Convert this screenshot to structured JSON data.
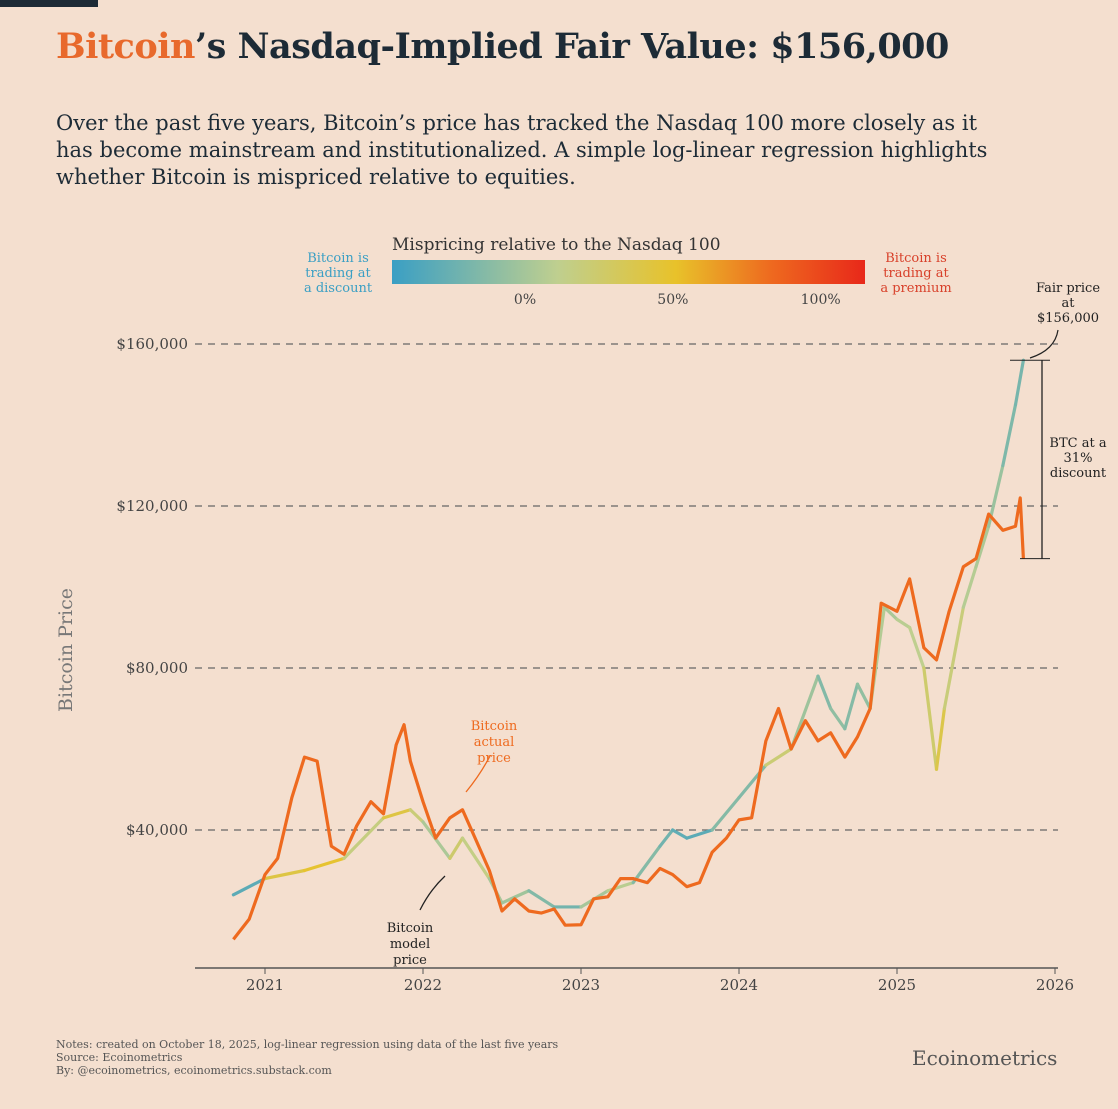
{
  "title_accent": "Bitcoin",
  "title_rest": "’s Nasdaq-Implied Fair Value: $156,000",
  "subtitle": "Over the past five years, Bitcoin’s price has tracked the Nasdaq 100 more closely as it has become mainstream and institutionalized. A simple log-linear regression highlights whether Bitcoin is mispriced relative to equities.",
  "colors": {
    "accent": "#e8692c",
    "actual": "#ee6a1f",
    "discount": "#3a9fc4",
    "neutral": "#bfcf8f",
    "mid": "#e8c22a",
    "premium": "#e8281a",
    "text": "#1d2b36",
    "background": "#f4dfcf"
  },
  "notes": [
    "Notes: created on October 18, 2025, log-linear regression using data of the last five years",
    "Source: Ecoinometrics",
    "By: @ecoinometrics, ecoinometrics.substack.com"
  ],
  "brand": "Ecoinometrics",
  "chart_data": {
    "type": "line",
    "ylabel": "Bitcoin Price",
    "xlabel": "",
    "xlim": [
      2020.6,
      2026.05
    ],
    "ylim": [
      6000,
      165000
    ],
    "x_ticks": [
      "2021",
      "2022",
      "2023",
      "2024",
      "2025",
      "2026"
    ],
    "y_ticks": [
      {
        "value": 40000,
        "label": "$40,000"
      },
      {
        "value": 80000,
        "label": "$80,000"
      },
      {
        "value": 120000,
        "label": "$120,000"
      },
      {
        "value": 160000,
        "label": "$160,000"
      }
    ],
    "grid": "horizontal dashed",
    "colorbar": {
      "title": "Mispricing relative to the Nasdaq 100",
      "left_label": "Bitcoin is trading at a discount",
      "right_label": "Bitcoin is trading at a premium",
      "ticks": [
        "0%",
        "50%",
        "100%"
      ],
      "range_percent": [
        -45,
        115
      ]
    },
    "annotations": {
      "actual": "Bitcoin actual price",
      "model": "Bitcoin model price",
      "fair": "Fair price at $156,000",
      "discount": "BTC at a 31% discount"
    },
    "series": [
      {
        "name": "Bitcoin actual price",
        "x": [
          2020.8,
          2020.9,
          2021.0,
          2021.08,
          2021.17,
          2021.25,
          2021.33,
          2021.42,
          2021.5,
          2021.58,
          2021.67,
          2021.75,
          2021.83,
          2021.88,
          2021.92,
          2022.0,
          2022.08,
          2022.17,
          2022.25,
          2022.33,
          2022.42,
          2022.5,
          2022.58,
          2022.67,
          2022.75,
          2022.83,
          2022.9,
          2023.0,
          2023.08,
          2023.17,
          2023.25,
          2023.33,
          2023.42,
          2023.5,
          2023.58,
          2023.67,
          2023.75,
          2023.83,
          2023.92,
          2024.0,
          2024.08,
          2024.17,
          2024.25,
          2024.33,
          2024.42,
          2024.5,
          2024.58,
          2024.67,
          2024.75,
          2024.83,
          2024.9,
          2025.0,
          2025.08,
          2025.17,
          2025.25,
          2025.33,
          2025.42,
          2025.5,
          2025.58,
          2025.67,
          2025.75,
          2025.78,
          2025.8
        ],
        "values": [
          13000,
          18000,
          29000,
          33000,
          48000,
          58000,
          57000,
          36000,
          34000,
          41000,
          47000,
          44000,
          61000,
          66000,
          57000,
          47000,
          38000,
          43000,
          45000,
          38000,
          30000,
          20000,
          23000,
          20000,
          19500,
          20500,
          16500,
          16600,
          23000,
          23500,
          28000,
          28000,
          27000,
          30500,
          29000,
          26000,
          27000,
          34500,
          38000,
          42500,
          43000,
          62000,
          70000,
          60000,
          67000,
          62000,
          64000,
          58000,
          63000,
          70000,
          96000,
          94000,
          102000,
          85000,
          82000,
          94000,
          105000,
          107000,
          118000,
          114000,
          115000,
          122000,
          107000
        ]
      },
      {
        "name": "Bitcoin model price",
        "x": [
          2020.8,
          2021.0,
          2021.25,
          2021.5,
          2021.75,
          2021.92,
          2022.0,
          2022.17,
          2022.25,
          2022.42,
          2022.5,
          2022.67,
          2022.83,
          2023.0,
          2023.17,
          2023.33,
          2023.5,
          2023.58,
          2023.67,
          2023.83,
          2024.0,
          2024.17,
          2024.33,
          2024.5,
          2024.58,
          2024.67,
          2024.75,
          2024.83,
          2024.92,
          2025.0,
          2025.08,
          2025.17,
          2025.25,
          2025.3,
          2025.42,
          2025.5,
          2025.58,
          2025.67,
          2025.75,
          2025.8
        ],
        "values": [
          24000,
          28000,
          30000,
          33000,
          43000,
          45000,
          42000,
          33000,
          38000,
          28000,
          22000,
          25000,
          21000,
          21000,
          25000,
          27000,
          36000,
          40000,
          38000,
          40000,
          48000,
          56000,
          60000,
          78000,
          70000,
          65000,
          76000,
          70000,
          95000,
          92000,
          90000,
          80000,
          55000,
          70000,
          95000,
          105000,
          115000,
          130000,
          145000,
          156000
        ]
      }
    ]
  }
}
